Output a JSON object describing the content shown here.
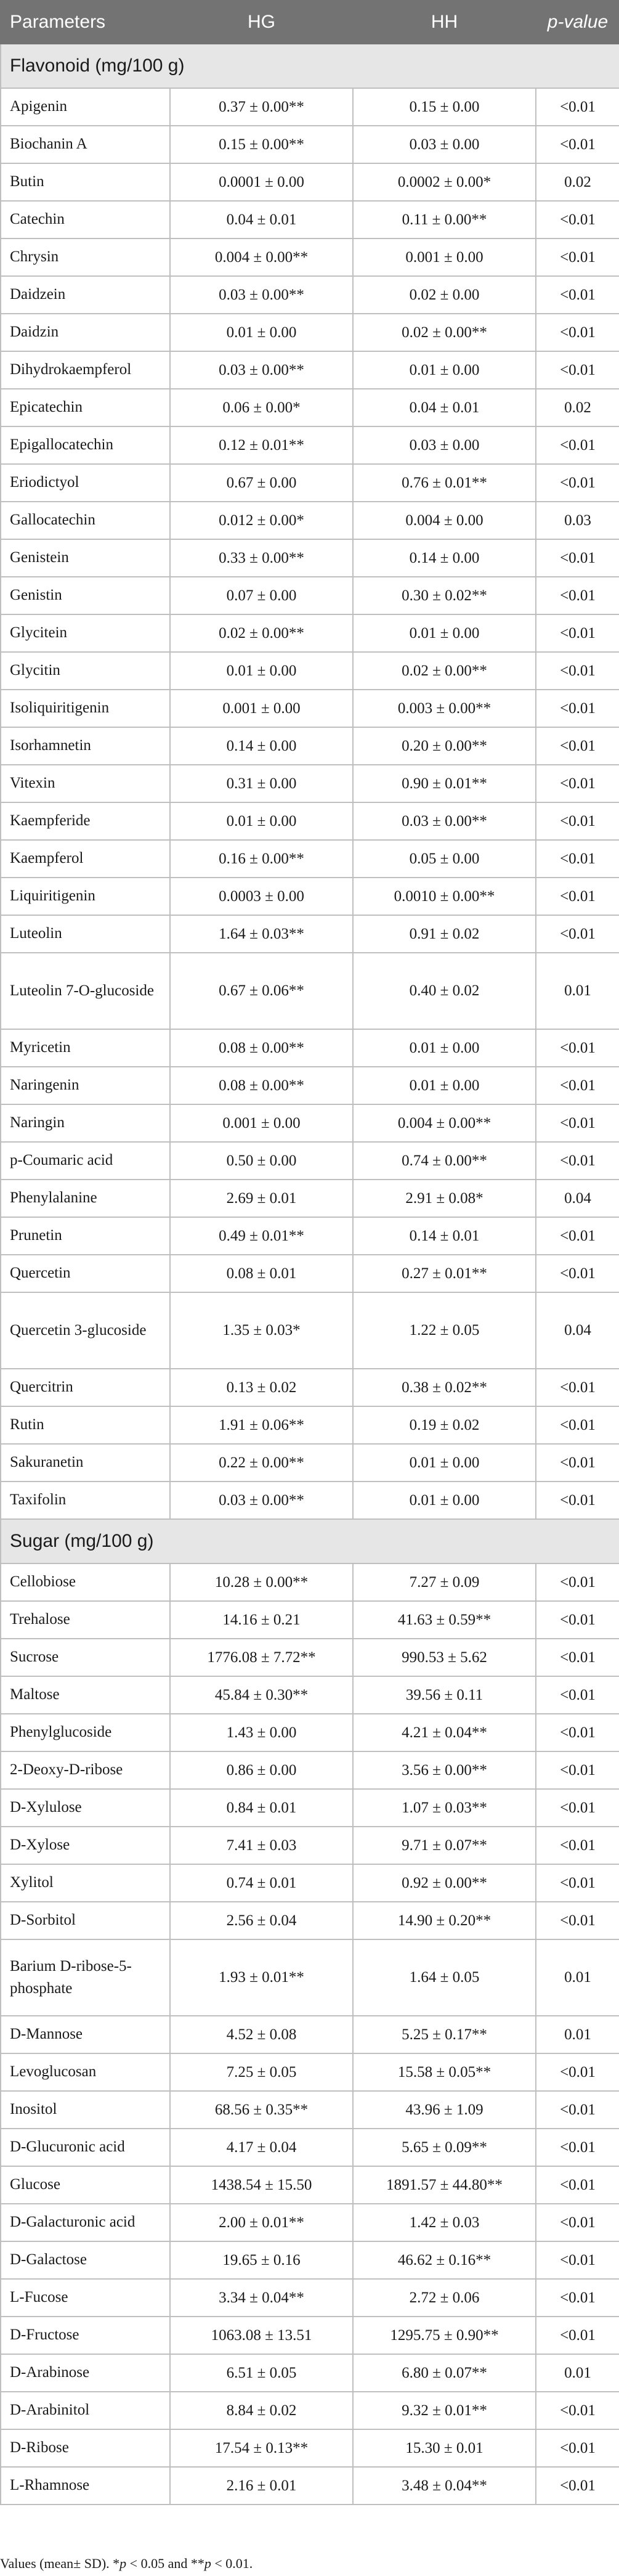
{
  "header": {
    "parameters": "Parameters",
    "hg": "HG",
    "hh": "HH",
    "pvalue": "p-value"
  },
  "sections": [
    {
      "title": "Flavonoid (mg/100 g)",
      "rows": [
        {
          "name": "Apigenin",
          "hg": "0.37 ± 0.00**",
          "hh": "0.15 ± 0.00",
          "p": "<0.01"
        },
        {
          "name": "Biochanin A",
          "hg": "0.15 ± 0.00**",
          "hh": "0.03 ± 0.00",
          "p": "<0.01"
        },
        {
          "name": "Butin",
          "hg": "0.0001 ± 0.00",
          "hh": "0.0002 ± 0.00*",
          "p": "0.02"
        },
        {
          "name": "Catechin",
          "hg": "0.04 ± 0.01",
          "hh": "0.11 ± 0.00**",
          "p": "<0.01"
        },
        {
          "name": "Chrysin",
          "hg": "0.004 ± 0.00**",
          "hh": "0.001 ± 0.00",
          "p": "<0.01"
        },
        {
          "name": "Daidzein",
          "hg": "0.03 ± 0.00**",
          "hh": "0.02 ± 0.00",
          "p": "<0.01"
        },
        {
          "name": "Daidzin",
          "hg": "0.01 ± 0.00",
          "hh": "0.02 ± 0.00**",
          "p": "<0.01"
        },
        {
          "name": "Dihydrokaempferol",
          "hg": "0.03 ± 0.00**",
          "hh": "0.01 ± 0.00",
          "p": "<0.01"
        },
        {
          "name": "Epicatechin",
          "hg": "0.06 ± 0.00*",
          "hh": "0.04 ± 0.01",
          "p": "0.02"
        },
        {
          "name": "Epigallocatechin",
          "hg": "0.12 ± 0.01**",
          "hh": "0.03 ± 0.00",
          "p": "<0.01"
        },
        {
          "name": "Eriodictyol",
          "hg": "0.67 ± 0.00",
          "hh": "0.76 ± 0.01**",
          "p": "<0.01"
        },
        {
          "name": "Gallocatechin",
          "hg": "0.012 ± 0.00*",
          "hh": "0.004 ± 0.00",
          "p": "0.03"
        },
        {
          "name": "Genistein",
          "hg": "0.33 ± 0.00**",
          "hh": "0.14 ± 0.00",
          "p": "<0.01"
        },
        {
          "name": "Genistin",
          "hg": "0.07 ± 0.00",
          "hh": "0.30 ± 0.02**",
          "p": "<0.01"
        },
        {
          "name": "Glycitein",
          "hg": "0.02 ± 0.00**",
          "hh": "0.01 ± 0.00",
          "p": "<0.01"
        },
        {
          "name": "Glycitin",
          "hg": "0.01 ± 0.00",
          "hh": "0.02 ± 0.00**",
          "p": "<0.01"
        },
        {
          "name": "Isoliquiritigenin",
          "hg": "0.001 ± 0.00",
          "hh": "0.003 ± 0.00**",
          "p": "<0.01"
        },
        {
          "name": "Isorhamnetin",
          "hg": "0.14 ± 0.00",
          "hh": "0.20 ± 0.00**",
          "p": "<0.01"
        },
        {
          "name": "Vitexin",
          "hg": "0.31 ± 0.00",
          "hh": "0.90 ± 0.01**",
          "p": "<0.01"
        },
        {
          "name": "Kaempferide",
          "hg": "0.01 ± 0.00",
          "hh": "0.03 ± 0.00**",
          "p": "<0.01"
        },
        {
          "name": "Kaempferol",
          "hg": "0.16 ± 0.00**",
          "hh": "0.05 ± 0.00",
          "p": "<0.01"
        },
        {
          "name": "Liquiritigenin",
          "hg": "0.0003 ± 0.00",
          "hh": "0.0010 ± 0.00**",
          "p": "<0.01"
        },
        {
          "name": "Luteolin",
          "hg": "1.64 ± 0.03**",
          "hh": "0.91 ± 0.02",
          "p": "<0.01"
        },
        {
          "name": "Luteolin 7-O-glucoside",
          "hg": "0.67 ± 0.06**",
          "hh": "0.40 ± 0.02",
          "p": "0.01",
          "tall": true
        },
        {
          "name": "Myricetin",
          "hg": "0.08 ± 0.00**",
          "hh": "0.01 ± 0.00",
          "p": "<0.01"
        },
        {
          "name": "Naringenin",
          "hg": "0.08 ± 0.00**",
          "hh": "0.01 ± 0.00",
          "p": "<0.01"
        },
        {
          "name": "Naringin",
          "hg": "0.001 ± 0.00",
          "hh": "0.004 ± 0.00**",
          "p": "<0.01"
        },
        {
          "name": "p-Coumaric acid",
          "hg": "0.50 ± 0.00",
          "hh": "0.74 ± 0.00**",
          "p": "<0.01"
        },
        {
          "name": "Phenylalanine",
          "hg": "2.69 ± 0.01",
          "hh": "2.91 ± 0.08*",
          "p": "0.04"
        },
        {
          "name": "Prunetin",
          "hg": "0.49 ± 0.01**",
          "hh": "0.14 ± 0.01",
          "p": "<0.01"
        },
        {
          "name": "Quercetin",
          "hg": "0.08 ± 0.01",
          "hh": "0.27 ± 0.01**",
          "p": "<0.01"
        },
        {
          "name": "Quercetin 3-glucoside",
          "hg": "1.35 ± 0.03*",
          "hh": "1.22 ± 0.05",
          "p": "0.04",
          "tall": true
        },
        {
          "name": "Quercitrin",
          "hg": "0.13 ± 0.02",
          "hh": "0.38 ± 0.02**",
          "p": "<0.01"
        },
        {
          "name": "Rutin",
          "hg": "1.91 ± 0.06**",
          "hh": "0.19 ± 0.02",
          "p": "<0.01"
        },
        {
          "name": "Sakuranetin",
          "hg": "0.22 ± 0.00**",
          "hh": "0.01 ± 0.00",
          "p": "<0.01"
        },
        {
          "name": "Taxifolin",
          "hg": "0.03 ± 0.00**",
          "hh": "0.01 ± 0.00",
          "p": "<0.01"
        }
      ]
    },
    {
      "title": "Sugar (mg/100 g)",
      "rows": [
        {
          "name": "Cellobiose",
          "hg": "10.28 ± 0.00**",
          "hh": "7.27 ± 0.09",
          "p": "<0.01"
        },
        {
          "name": "Trehalose",
          "hg": "14.16 ± 0.21",
          "hh": "41.63 ± 0.59**",
          "p": "<0.01"
        },
        {
          "name": "Sucrose",
          "hg": "1776.08 ± 7.72**",
          "hh": "990.53 ± 5.62",
          "p": "<0.01"
        },
        {
          "name": "Maltose",
          "hg": "45.84 ± 0.30**",
          "hh": "39.56 ± 0.11",
          "p": "<0.01"
        },
        {
          "name": "Phenylglucoside",
          "hg": "1.43 ± 0.00",
          "hh": "4.21 ± 0.04**",
          "p": "<0.01"
        },
        {
          "name": "2-Deoxy-D-ribose",
          "hg": "0.86 ± 0.00",
          "hh": "3.56 ± 0.00**",
          "p": "<0.01"
        },
        {
          "name": "D-Xylulose",
          "hg": "0.84 ± 0.01",
          "hh": "1.07 ± 0.03**",
          "p": "<0.01"
        },
        {
          "name": "D-Xylose",
          "hg": "7.41 ± 0.03",
          "hh": "9.71 ± 0.07**",
          "p": "<0.01"
        },
        {
          "name": "Xylitol",
          "hg": "0.74 ± 0.01",
          "hh": "0.92 ± 0.00**",
          "p": "<0.01"
        },
        {
          "name": "D-Sorbitol",
          "hg": "2.56 ± 0.04",
          "hh": "14.90 ± 0.20**",
          "p": "<0.01"
        },
        {
          "name": "Barium D-ribose-5-phosphate",
          "hg": "1.93 ± 0.01**",
          "hh": "1.64 ± 0.05",
          "p": "0.01",
          "tall": true
        },
        {
          "name": "D-Mannose",
          "hg": "4.52 ± 0.08",
          "hh": "5.25 ± 0.17**",
          "p": "0.01"
        },
        {
          "name": "Levoglucosan",
          "hg": "7.25 ± 0.05",
          "hh": "15.58 ± 0.05**",
          "p": "<0.01"
        },
        {
          "name": "Inositol",
          "hg": "68.56 ± 0.35**",
          "hh": "43.96 ± 1.09",
          "p": "<0.01"
        },
        {
          "name": "D-Glucuronic acid",
          "hg": "4.17 ± 0.04",
          "hh": "5.65 ± 0.09**",
          "p": "<0.01"
        },
        {
          "name": "Glucose",
          "hg": "1438.54 ± 15.50",
          "hh": "1891.57 ± 44.80**",
          "p": "<0.01"
        },
        {
          "name": "D-Galacturonic acid",
          "hg": "2.00 ± 0.01**",
          "hh": "1.42 ± 0.03",
          "p": "<0.01"
        },
        {
          "name": "D-Galactose",
          "hg": "19.65 ± 0.16",
          "hh": "46.62 ± 0.16**",
          "p": "<0.01"
        },
        {
          "name": "L-Fucose",
          "hg": "3.34 ± 0.04**",
          "hh": "2.72 ± 0.06",
          "p": "<0.01"
        },
        {
          "name": "D-Fructose",
          "hg": "1063.08 ± 13.51",
          "hh": "1295.75 ± 0.90**",
          "p": "<0.01"
        },
        {
          "name": "D-Arabinose",
          "hg": "6.51 ± 0.05",
          "hh": "6.80 ± 0.07**",
          "p": "0.01"
        },
        {
          "name": "D-Arabinitol",
          "hg": "8.84 ± 0.02",
          "hh": "9.32 ± 0.01**",
          "p": "<0.01"
        },
        {
          "name": "D-Ribose",
          "hg": "17.54 ± 0.13**",
          "hh": "15.30 ± 0.01",
          "p": "<0.01"
        },
        {
          "name": "L-Rhamnose",
          "hg": "2.16 ± 0.01",
          "hh": "3.48 ± 0.04**",
          "p": "<0.01"
        }
      ]
    }
  ],
  "footnote": {
    "lead": "Values (mean± SD). *",
    "p1": "p",
    "mid": " < 0.05 and **",
    "p2": "p",
    "tail": " < 0.01."
  }
}
